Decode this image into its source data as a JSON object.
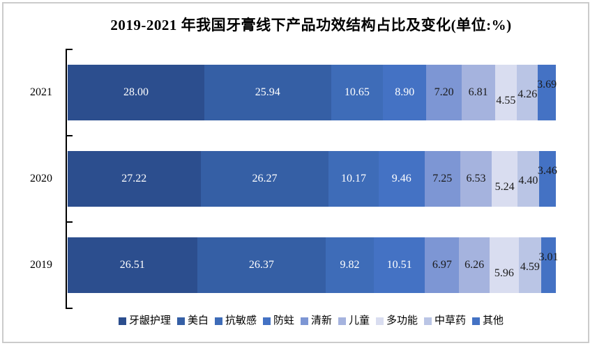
{
  "chart_data": {
    "type": "bar",
    "orientation": "horizontal-stacked",
    "title": "2019-2021 年我国牙膏线下产品功效结构占比及变化(单位:%)",
    "unit": "%",
    "categories": [
      "2021",
      "2020",
      "2019"
    ],
    "xlim": [
      0,
      100
    ],
    "legend_position": "bottom",
    "value_labels_shown": true,
    "axis_color": "#000000",
    "series": [
      {
        "name": "牙龈护理",
        "color": "#2C4E8E",
        "label_color": "#FFFFFF",
        "values": [
          28.0,
          27.22,
          26.51
        ],
        "labels": [
          "28.00",
          "27.22",
          "26.51"
        ]
      },
      {
        "name": "美白",
        "color": "#355FA5",
        "label_color": "#FFFFFF",
        "values": [
          25.94,
          26.27,
          26.37
        ],
        "labels": [
          "25.94",
          "26.27",
          "26.37"
        ]
      },
      {
        "name": "抗敏感",
        "color": "#3E6CB8",
        "label_color": "#FFFFFF",
        "values": [
          10.65,
          10.17,
          9.82
        ],
        "labels": [
          "10.65",
          "10.17",
          "9.82"
        ]
      },
      {
        "name": "防蛀",
        "color": "#4472C4",
        "label_color": "#FFFFFF",
        "values": [
          8.9,
          9.46,
          10.51
        ],
        "labels": [
          "8.90",
          "9.46",
          "10.51"
        ]
      },
      {
        "name": "清新",
        "color": "#7D96D4",
        "label_color": "#1A1A1A",
        "values": [
          7.2,
          7.25,
          6.97
        ],
        "labels": [
          "7.20",
          "7.25",
          "6.97"
        ]
      },
      {
        "name": "儿童",
        "color": "#A5B3DE",
        "label_color": "#1A1A1A",
        "values": [
          6.81,
          6.53,
          6.26
        ],
        "labels": [
          "6.81",
          "6.53",
          "6.26"
        ]
      },
      {
        "name": "多功能",
        "color": "#D9DDF0",
        "label_color": "#1A1A1A",
        "values": [
          4.55,
          5.24,
          5.96
        ],
        "labels": [
          "4.55",
          "5.24",
          "5.96"
        ]
      },
      {
        "name": "中草药",
        "color": "#BAC5E5",
        "label_color": "#1A1A1A",
        "values": [
          4.26,
          4.4,
          4.59
        ],
        "labels": [
          "4.26",
          "4.40",
          "4.59"
        ]
      },
      {
        "name": "其他",
        "color": "#4472C4",
        "label_color": "#1A1A1A",
        "values": [
          3.69,
          3.46,
          3.01
        ],
        "labels": [
          "3.69",
          "3.46",
          "3.01"
        ]
      }
    ]
  }
}
